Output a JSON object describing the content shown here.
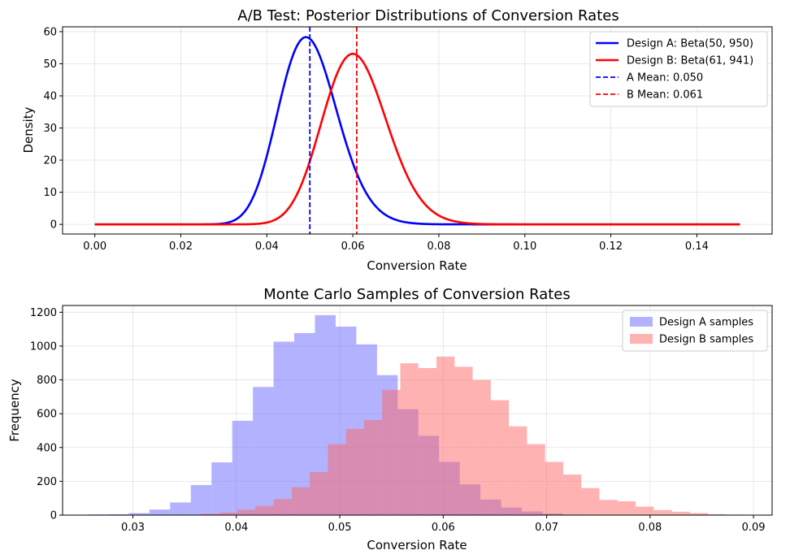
{
  "chart_data": [
    {
      "type": "line",
      "title": "A/B Test: Posterior Distributions of Conversion Rates",
      "xlabel": "Conversion Rate",
      "ylabel": "Density",
      "xlim": [
        -0.0075,
        0.1575
      ],
      "ylim": [
        -3,
        61.5
      ],
      "xticks": [
        0.0,
        0.02,
        0.04,
        0.06,
        0.08,
        0.1,
        0.12,
        0.14
      ],
      "xtick_labels": [
        "0.00",
        "0.02",
        "0.04",
        "0.06",
        "0.08",
        "0.10",
        "0.12",
        "0.14"
      ],
      "yticks": [
        0,
        10,
        20,
        30,
        40,
        50,
        60
      ],
      "ytick_labels": [
        "0",
        "10",
        "20",
        "30",
        "40",
        "50",
        "60"
      ],
      "grid": true,
      "legend_position": "top-right",
      "series": [
        {
          "name": "Design A: Beta(50, 950)",
          "kind": "beta_pdf",
          "alpha": 50,
          "beta": 950,
          "x_range": [
            0,
            0.15
          ],
          "color": "#0000ff",
          "style": "solid"
        },
        {
          "name": "Design B: Beta(61, 941)",
          "kind": "beta_pdf",
          "alpha": 61,
          "beta": 941,
          "x_range": [
            0,
            0.15
          ],
          "color": "#ff0000",
          "style": "solid"
        },
        {
          "name": "A Mean: 0.050",
          "kind": "vline",
          "x": 0.05,
          "color": "#0000ff",
          "style": "dashed"
        },
        {
          "name": "B Mean: 0.061",
          "kind": "vline",
          "x": 0.0609,
          "color": "#ff0000",
          "style": "dashed"
        }
      ]
    },
    {
      "type": "bar",
      "subtype": "histogram",
      "title": "Monte Carlo Samples of Conversion Rates",
      "xlabel": "Conversion Rate",
      "ylabel": "Frequency",
      "xlim": [
        0.0232,
        0.0918
      ],
      "ylim": [
        0,
        1240
      ],
      "xticks": [
        0.03,
        0.04,
        0.05,
        0.06,
        0.07,
        0.08,
        0.09
      ],
      "xtick_labels": [
        "0.03",
        "0.04",
        "0.05",
        "0.06",
        "0.07",
        "0.08",
        "0.09"
      ],
      "yticks": [
        0,
        200,
        400,
        600,
        800,
        1000,
        1200
      ],
      "ytick_labels": [
        "0",
        "200",
        "400",
        "600",
        "800",
        "1000",
        "1200"
      ],
      "grid": true,
      "legend_position": "top-right",
      "series": [
        {
          "name": "Design A samples",
          "color": "#6666ff",
          "opacity": 0.5,
          "bin_start": 0.0256,
          "bin_width": 0.002,
          "values": [
            4,
            5,
            12,
            33,
            75,
            178,
            312,
            558,
            758,
            1026,
            1077,
            1183,
            1115,
            1010,
            828,
            627,
            469,
            315,
            182,
            92,
            45,
            22,
            9,
            3
          ]
        },
        {
          "name": "Design B samples",
          "color": "#ff6666",
          "opacity": 0.5,
          "bin_start": 0.0366,
          "bin_width": 0.00175,
          "values": [
            8,
            15,
            32,
            55,
            95,
            165,
            255,
            420,
            510,
            562,
            741,
            898,
            870,
            938,
            878,
            800,
            680,
            525,
            420,
            315,
            240,
            160,
            90,
            82,
            50,
            30,
            20,
            12,
            5,
            3
          ]
        }
      ]
    }
  ]
}
